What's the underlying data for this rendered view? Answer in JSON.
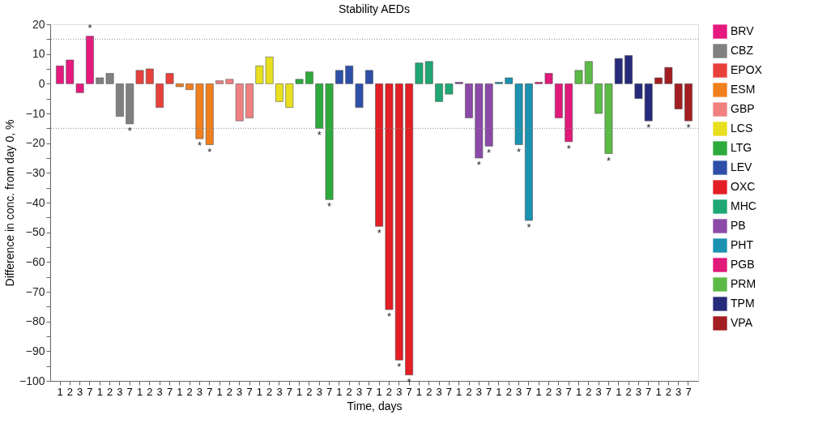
{
  "chart_data": {
    "type": "bar",
    "title": "Stability AEDs",
    "xlabel": "Time, days",
    "ylabel": "Difference in conc. from day 0, %",
    "categories": [
      "1",
      "2",
      "3",
      "7",
      "1",
      "2",
      "3",
      "7",
      "1",
      "2",
      "3",
      "7",
      "1",
      "2",
      "3",
      "7",
      "1",
      "2",
      "3",
      "7",
      "1",
      "2",
      "3",
      "7",
      "1",
      "2",
      "3",
      "7",
      "1",
      "2",
      "3",
      "7",
      "1",
      "2",
      "3",
      "7",
      "1",
      "2",
      "3",
      "7",
      "1",
      "2",
      "3",
      "7",
      "1",
      "2",
      "3",
      "7",
      "1",
      "2",
      "3",
      "7",
      "1",
      "2",
      "3",
      "7",
      "1",
      "2",
      "3",
      "7",
      "1",
      "2",
      "3",
      "7"
    ],
    "series": [
      {
        "name": "BRV",
        "color": "#e6197f",
        "values": [
          6,
          8,
          -3,
          16,
          null,
          null,
          null,
          null,
          null,
          null,
          null,
          null,
          null,
          null,
          null,
          null,
          null,
          null,
          null,
          null,
          null,
          null,
          null,
          null,
          null,
          null,
          null,
          null,
          null,
          null,
          null,
          null,
          null,
          null,
          null,
          null,
          null,
          null,
          null,
          null,
          null,
          null,
          null,
          null,
          null,
          null,
          null,
          null,
          null,
          null,
          null,
          null,
          null,
          null,
          null,
          null,
          null,
          null,
          null,
          null,
          null,
          null,
          null,
          null
        ],
        "value_labels": [
          null,
          null,
          null,
          "*",
          null,
          null,
          null,
          null,
          null,
          null,
          null,
          null,
          null,
          null,
          null,
          null,
          null,
          null,
          null,
          null,
          null,
          null,
          null,
          null,
          null,
          null,
          null,
          null,
          null,
          null,
          null,
          null,
          null,
          null,
          null,
          null,
          null,
          null,
          null,
          null,
          null,
          null,
          null,
          null,
          null,
          null,
          null,
          null,
          null,
          null,
          null,
          null,
          null,
          null,
          null,
          null,
          null,
          null,
          null,
          null,
          null,
          null,
          null,
          null
        ]
      },
      {
        "name": "CBZ",
        "color": "#808080",
        "values": [
          null,
          null,
          null,
          null,
          2,
          3.5,
          -11,
          -13.5,
          null,
          null,
          null,
          null,
          null,
          null,
          null,
          null,
          null,
          null,
          null,
          null,
          null,
          null,
          null,
          null,
          null,
          null,
          null,
          null,
          null,
          null,
          null,
          null,
          null,
          null,
          null,
          null,
          null,
          null,
          null,
          null,
          null,
          null,
          null,
          null,
          null,
          null,
          null,
          null,
          null,
          null,
          null,
          null,
          null,
          null,
          null,
          null,
          null,
          null,
          null,
          null,
          null,
          null,
          null,
          null
        ],
        "value_labels": [
          null,
          null,
          null,
          null,
          null,
          null,
          null,
          "*",
          null,
          null,
          null,
          null,
          null,
          null,
          null,
          null,
          null,
          null,
          null,
          null,
          null,
          null,
          null,
          null,
          null,
          null,
          null,
          null,
          null,
          null,
          null,
          null,
          null,
          null,
          null,
          null,
          null,
          null,
          null,
          null,
          null,
          null,
          null,
          null,
          null,
          null,
          null,
          null,
          null,
          null,
          null,
          null,
          null,
          null,
          null,
          null,
          null,
          null,
          null,
          null,
          null,
          null,
          null,
          null
        ]
      },
      {
        "name": "EPOX",
        "color": "#e8413c",
        "values": [
          null,
          null,
          null,
          null,
          null,
          null,
          null,
          null,
          4.5,
          5,
          -8,
          3.5,
          null,
          null,
          null,
          null,
          null,
          null,
          null,
          null,
          null,
          null,
          null,
          null,
          null,
          null,
          null,
          null,
          null,
          null,
          null,
          null,
          null,
          null,
          null,
          null,
          null,
          null,
          null,
          null,
          null,
          null,
          null,
          null,
          null,
          null,
          null,
          null,
          null,
          null,
          null,
          null,
          null,
          null,
          null,
          null,
          null,
          null,
          null,
          null,
          null,
          null,
          null,
          null
        ]
      },
      {
        "name": "ESM",
        "color": "#f07f1e",
        "values": [
          null,
          null,
          null,
          null,
          null,
          null,
          null,
          null,
          null,
          null,
          null,
          null,
          -1,
          -2,
          -18.5,
          -20.5,
          null,
          null,
          null,
          null,
          null,
          null,
          null,
          null,
          null,
          null,
          null,
          null,
          null,
          null,
          null,
          null,
          null,
          null,
          null,
          null,
          null,
          null,
          null,
          null,
          null,
          null,
          null,
          null,
          null,
          null,
          null,
          null,
          null,
          null,
          null,
          null,
          null,
          null,
          null,
          null,
          null,
          null,
          null,
          null,
          null,
          null,
          null,
          null
        ],
        "value_labels": [
          null,
          null,
          null,
          null,
          null,
          null,
          null,
          null,
          null,
          null,
          null,
          null,
          null,
          null,
          "*",
          "*",
          null,
          null,
          null,
          null,
          null,
          null,
          null,
          null,
          null,
          null,
          null,
          null,
          null,
          null,
          null,
          null,
          null,
          null,
          null,
          null,
          null,
          null,
          null,
          null,
          null,
          null,
          null,
          null,
          null,
          null,
          null,
          null,
          null,
          null,
          null,
          null,
          null,
          null,
          null,
          null,
          null,
          null,
          null,
          null,
          null,
          null,
          null,
          null
        ]
      },
      {
        "name": "GBP",
        "color": "#f08080",
        "values": [
          null,
          null,
          null,
          null,
          null,
          null,
          null,
          null,
          null,
          null,
          null,
          null,
          null,
          null,
          null,
          null,
          1,
          1.5,
          -12.5,
          -11.5,
          null,
          null,
          null,
          null,
          null,
          null,
          null,
          null,
          null,
          null,
          null,
          null,
          null,
          null,
          null,
          null,
          null,
          null,
          null,
          null,
          null,
          null,
          null,
          null,
          null,
          null,
          null,
          null,
          null,
          null,
          null,
          null,
          null,
          null,
          null,
          null,
          null,
          null,
          null,
          null,
          null,
          null,
          null,
          null
        ]
      },
      {
        "name": "LCS",
        "color": "#e8e01e",
        "values": [
          null,
          null,
          null,
          null,
          null,
          null,
          null,
          null,
          null,
          null,
          null,
          null,
          null,
          null,
          null,
          null,
          null,
          null,
          null,
          null,
          6,
          9,
          -6,
          -8,
          null,
          null,
          null,
          null,
          null,
          null,
          null,
          null,
          null,
          null,
          null,
          null,
          null,
          null,
          null,
          null,
          null,
          null,
          null,
          null,
          null,
          null,
          null,
          null,
          null,
          null,
          null,
          null,
          null,
          null,
          null,
          null,
          null,
          null,
          null,
          null,
          null,
          null,
          null,
          null
        ]
      },
      {
        "name": "LTG",
        "color": "#2eaa3c",
        "values": [
          null,
          null,
          null,
          null,
          null,
          null,
          null,
          null,
          null,
          null,
          null,
          null,
          null,
          null,
          null,
          null,
          null,
          null,
          null,
          null,
          null,
          null,
          null,
          null,
          1.5,
          4,
          -15,
          -39,
          null,
          null,
          null,
          null,
          null,
          null,
          null,
          null,
          null,
          null,
          null,
          null,
          null,
          null,
          null,
          null,
          null,
          null,
          null,
          null,
          null,
          null,
          null,
          null,
          null,
          null,
          null,
          null,
          null,
          null,
          null,
          null,
          null,
          null,
          null,
          null
        ],
        "value_labels": [
          null,
          null,
          null,
          null,
          null,
          null,
          null,
          null,
          null,
          null,
          null,
          null,
          null,
          null,
          null,
          null,
          null,
          null,
          null,
          null,
          null,
          null,
          null,
          null,
          null,
          null,
          "*",
          "*",
          null,
          null,
          null,
          null,
          null,
          null,
          null,
          null,
          null,
          null,
          null,
          null,
          null,
          null,
          null,
          null,
          null,
          null,
          null,
          null,
          null,
          null,
          null,
          null,
          null,
          null,
          null,
          null,
          null,
          null,
          null,
          null,
          null,
          null,
          null,
          null
        ]
      },
      {
        "name": "LEV",
        "color": "#2e4fa8",
        "values": [
          null,
          null,
          null,
          null,
          null,
          null,
          null,
          null,
          null,
          null,
          null,
          null,
          null,
          null,
          null,
          null,
          null,
          null,
          null,
          null,
          null,
          null,
          null,
          null,
          null,
          null,
          null,
          null,
          4.5,
          6,
          -8,
          4.5,
          null,
          null,
          null,
          null,
          null,
          null,
          null,
          null,
          null,
          null,
          null,
          null,
          null,
          null,
          null,
          null,
          null,
          null,
          null,
          null,
          null,
          null,
          null,
          null,
          null,
          null,
          null,
          null,
          null,
          null,
          null,
          null
        ]
      },
      {
        "name": "OXC",
        "color": "#e31e24",
        "values": [
          null,
          null,
          null,
          null,
          null,
          null,
          null,
          null,
          null,
          null,
          null,
          null,
          null,
          null,
          null,
          null,
          null,
          null,
          null,
          null,
          null,
          null,
          null,
          null,
          null,
          null,
          null,
          null,
          null,
          null,
          null,
          null,
          -48,
          -76,
          -93,
          -98,
          null,
          null,
          null,
          null,
          null,
          null,
          null,
          null,
          null,
          null,
          null,
          null,
          null,
          null,
          null,
          null,
          null,
          null,
          null,
          null,
          null,
          null,
          null,
          null,
          null,
          null,
          null,
          null
        ],
        "value_labels": [
          null,
          null,
          null,
          null,
          null,
          null,
          null,
          null,
          null,
          null,
          null,
          null,
          null,
          null,
          null,
          null,
          null,
          null,
          null,
          null,
          null,
          null,
          null,
          null,
          null,
          null,
          null,
          null,
          null,
          null,
          null,
          null,
          "*",
          "*",
          "*",
          "*",
          null,
          null,
          null,
          null,
          null,
          null,
          null,
          null,
          null,
          null,
          null,
          null,
          null,
          null,
          null,
          null,
          null,
          null,
          null,
          null,
          null,
          null,
          null,
          null,
          null,
          null,
          null,
          null
        ]
      },
      {
        "name": "MHC",
        "color": "#1fa874",
        "values": [
          null,
          null,
          null,
          null,
          null,
          null,
          null,
          null,
          null,
          null,
          null,
          null,
          null,
          null,
          null,
          null,
          null,
          null,
          null,
          null,
          null,
          null,
          null,
          null,
          null,
          null,
          null,
          null,
          null,
          null,
          null,
          null,
          null,
          null,
          null,
          null,
          7,
          7.5,
          -6,
          -3.5,
          null,
          null,
          null,
          null,
          null,
          null,
          null,
          null,
          null,
          null,
          null,
          null,
          null,
          null,
          null,
          null,
          null,
          null,
          null,
          null,
          null,
          null,
          null,
          null
        ]
      },
      {
        "name": "PB",
        "color": "#8b4aa8",
        "values": [
          null,
          null,
          null,
          null,
          null,
          null,
          null,
          null,
          null,
          null,
          null,
          null,
          null,
          null,
          null,
          null,
          null,
          null,
          null,
          null,
          null,
          null,
          null,
          null,
          null,
          null,
          null,
          null,
          null,
          null,
          null,
          null,
          null,
          null,
          null,
          null,
          null,
          null,
          null,
          null,
          0.5,
          -11.5,
          -25,
          -21,
          null,
          null,
          null,
          null,
          null,
          null,
          null,
          null,
          null,
          null,
          null,
          null,
          null,
          null,
          null,
          null,
          null,
          null,
          null,
          null
        ],
        "value_labels": [
          null,
          null,
          null,
          null,
          null,
          null,
          null,
          null,
          null,
          null,
          null,
          null,
          null,
          null,
          null,
          null,
          null,
          null,
          null,
          null,
          null,
          null,
          null,
          null,
          null,
          null,
          null,
          null,
          null,
          null,
          null,
          null,
          null,
          null,
          null,
          null,
          null,
          null,
          null,
          null,
          null,
          null,
          "*",
          "*",
          null,
          null,
          null,
          null,
          null,
          null,
          null,
          null,
          null,
          null,
          null,
          null,
          null,
          null,
          null,
          null,
          null,
          null,
          null,
          null
        ]
      },
      {
        "name": "PHT",
        "color": "#1a92b0",
        "values": [
          null,
          null,
          null,
          null,
          null,
          null,
          null,
          null,
          null,
          null,
          null,
          null,
          null,
          null,
          null,
          null,
          null,
          null,
          null,
          null,
          null,
          null,
          null,
          null,
          null,
          null,
          null,
          null,
          null,
          null,
          null,
          null,
          null,
          null,
          null,
          null,
          null,
          null,
          null,
          null,
          null,
          null,
          null,
          null,
          0.5,
          2,
          -20.5,
          -46,
          null,
          null,
          null,
          null,
          null,
          null,
          null,
          null,
          null,
          null,
          null,
          null,
          null,
          null,
          null,
          null
        ],
        "value_labels": [
          null,
          null,
          null,
          null,
          null,
          null,
          null,
          null,
          null,
          null,
          null,
          null,
          null,
          null,
          null,
          null,
          null,
          null,
          null,
          null,
          null,
          null,
          null,
          null,
          null,
          null,
          null,
          null,
          null,
          null,
          null,
          null,
          null,
          null,
          null,
          null,
          null,
          null,
          null,
          null,
          null,
          null,
          null,
          null,
          null,
          null,
          "*",
          "*",
          null,
          null,
          null,
          null,
          null,
          null,
          null,
          null,
          null,
          null,
          null,
          null,
          null,
          null,
          null,
          null
        ]
      },
      {
        "name": "PGB",
        "color": "#e0197a",
        "values": [
          null,
          null,
          null,
          null,
          null,
          null,
          null,
          null,
          null,
          null,
          null,
          null,
          null,
          null,
          null,
          null,
          null,
          null,
          null,
          null,
          null,
          null,
          null,
          null,
          null,
          null,
          null,
          null,
          null,
          null,
          null,
          null,
          null,
          null,
          null,
          null,
          null,
          null,
          null,
          null,
          null,
          null,
          null,
          null,
          null,
          null,
          null,
          null,
          0.5,
          3.5,
          -11.5,
          -19.5,
          null,
          null,
          null,
          null,
          null,
          null,
          null,
          null,
          null,
          null,
          null,
          null
        ],
        "value_labels": [
          null,
          null,
          null,
          null,
          null,
          null,
          null,
          null,
          null,
          null,
          null,
          null,
          null,
          null,
          null,
          null,
          null,
          null,
          null,
          null,
          null,
          null,
          null,
          null,
          null,
          null,
          null,
          null,
          null,
          null,
          null,
          null,
          null,
          null,
          null,
          null,
          null,
          null,
          null,
          null,
          null,
          null,
          null,
          null,
          null,
          null,
          null,
          null,
          null,
          null,
          null,
          "*",
          null,
          null,
          null,
          null,
          null,
          null,
          null,
          null,
          null,
          null,
          null,
          null
        ]
      },
      {
        "name": "PRM",
        "color": "#5cba46",
        "values": [
          null,
          null,
          null,
          null,
          null,
          null,
          null,
          null,
          null,
          null,
          null,
          null,
          null,
          null,
          null,
          null,
          null,
          null,
          null,
          null,
          null,
          null,
          null,
          null,
          null,
          null,
          null,
          null,
          null,
          null,
          null,
          null,
          null,
          null,
          null,
          null,
          null,
          null,
          null,
          null,
          null,
          null,
          null,
          null,
          null,
          null,
          null,
          null,
          null,
          null,
          null,
          null,
          4.5,
          7.5,
          -10,
          -23.5,
          null,
          null,
          null,
          null,
          null,
          null,
          null,
          null
        ],
        "value_labels": [
          null,
          null,
          null,
          null,
          null,
          null,
          null,
          null,
          null,
          null,
          null,
          null,
          null,
          null,
          null,
          null,
          null,
          null,
          null,
          null,
          null,
          null,
          null,
          null,
          null,
          null,
          null,
          null,
          null,
          null,
          null,
          null,
          null,
          null,
          null,
          null,
          null,
          null,
          null,
          null,
          null,
          null,
          null,
          null,
          null,
          null,
          null,
          null,
          null,
          null,
          null,
          null,
          null,
          null,
          null,
          "*",
          null,
          null,
          null,
          null,
          null,
          null,
          null,
          null
        ]
      },
      {
        "name": "TPM",
        "color": "#262a7a",
        "values": [
          null,
          null,
          null,
          null,
          null,
          null,
          null,
          null,
          null,
          null,
          null,
          null,
          null,
          null,
          null,
          null,
          null,
          null,
          null,
          null,
          null,
          null,
          null,
          null,
          null,
          null,
          null,
          null,
          null,
          null,
          null,
          null,
          null,
          null,
          null,
          null,
          null,
          null,
          null,
          null,
          null,
          null,
          null,
          null,
          null,
          null,
          null,
          null,
          null,
          null,
          null,
          null,
          null,
          null,
          null,
          null,
          8.5,
          9.5,
          -5,
          -12.5,
          null,
          null,
          null,
          null
        ],
        "value_labels": [
          null,
          null,
          null,
          null,
          null,
          null,
          null,
          null,
          null,
          null,
          null,
          null,
          null,
          null,
          null,
          null,
          null,
          null,
          null,
          null,
          null,
          null,
          null,
          null,
          null,
          null,
          null,
          null,
          null,
          null,
          null,
          null,
          null,
          null,
          null,
          null,
          null,
          null,
          null,
          null,
          null,
          null,
          null,
          null,
          null,
          null,
          null,
          null,
          null,
          null,
          null,
          null,
          null,
          null,
          null,
          null,
          null,
          null,
          null,
          "*",
          null,
          null,
          null,
          null
        ]
      },
      {
        "name": "VPA",
        "color": "#a31e22",
        "values": [
          null,
          null,
          null,
          null,
          null,
          null,
          null,
          null,
          null,
          null,
          null,
          null,
          null,
          null,
          null,
          null,
          null,
          null,
          null,
          null,
          null,
          null,
          null,
          null,
          null,
          null,
          null,
          null,
          null,
          null,
          null,
          null,
          null,
          null,
          null,
          null,
          null,
          null,
          null,
          null,
          null,
          null,
          null,
          null,
          null,
          null,
          null,
          null,
          null,
          null,
          null,
          null,
          null,
          null,
          null,
          null,
          null,
          null,
          null,
          null,
          2,
          5.5,
          -8.5,
          -12.5
        ],
        "value_labels": [
          null,
          null,
          null,
          null,
          null,
          null,
          null,
          null,
          null,
          null,
          null,
          null,
          null,
          null,
          null,
          null,
          null,
          null,
          null,
          null,
          null,
          null,
          null,
          null,
          null,
          null,
          null,
          null,
          null,
          null,
          null,
          null,
          null,
          null,
          null,
          null,
          null,
          null,
          null,
          null,
          null,
          null,
          null,
          null,
          null,
          null,
          null,
          null,
          null,
          null,
          null,
          null,
          null,
          null,
          null,
          null,
          null,
          null,
          null,
          null,
          null,
          null,
          null,
          "*"
        ]
      }
    ],
    "ylim": [
      -100,
      20
    ],
    "yticks": [
      -100,
      {
        "value": -95,
        "label": null
      },
      -90,
      {
        "value": -85,
        "label": null
      },
      -80,
      {
        "value": -75,
        "label": null
      },
      -70,
      {
        "value": -65,
        "label": null
      },
      -60,
      {
        "value": -55,
        "label": null
      },
      -50,
      {
        "value": -45,
        "label": null
      },
      -40,
      {
        "value": -35,
        "label": null
      },
      -30,
      {
        "value": -25,
        "label": null
      },
      -20,
      {
        "value": -15,
        "label": null
      },
      -10,
      {
        "value": -5,
        "label": null
      },
      0,
      {
        "value": 5,
        "label": null
      },
      10,
      {
        "value": 15,
        "label": null
      },
      20
    ],
    "ref_lines": [
      {
        "axis": "y",
        "value": 15,
        "color": "#888888",
        "line_style": "dotted"
      },
      {
        "axis": "y",
        "value": -15,
        "color": "#888888",
        "line_style": "dotted"
      }
    ],
    "grid": false,
    "legend": "right"
  }
}
